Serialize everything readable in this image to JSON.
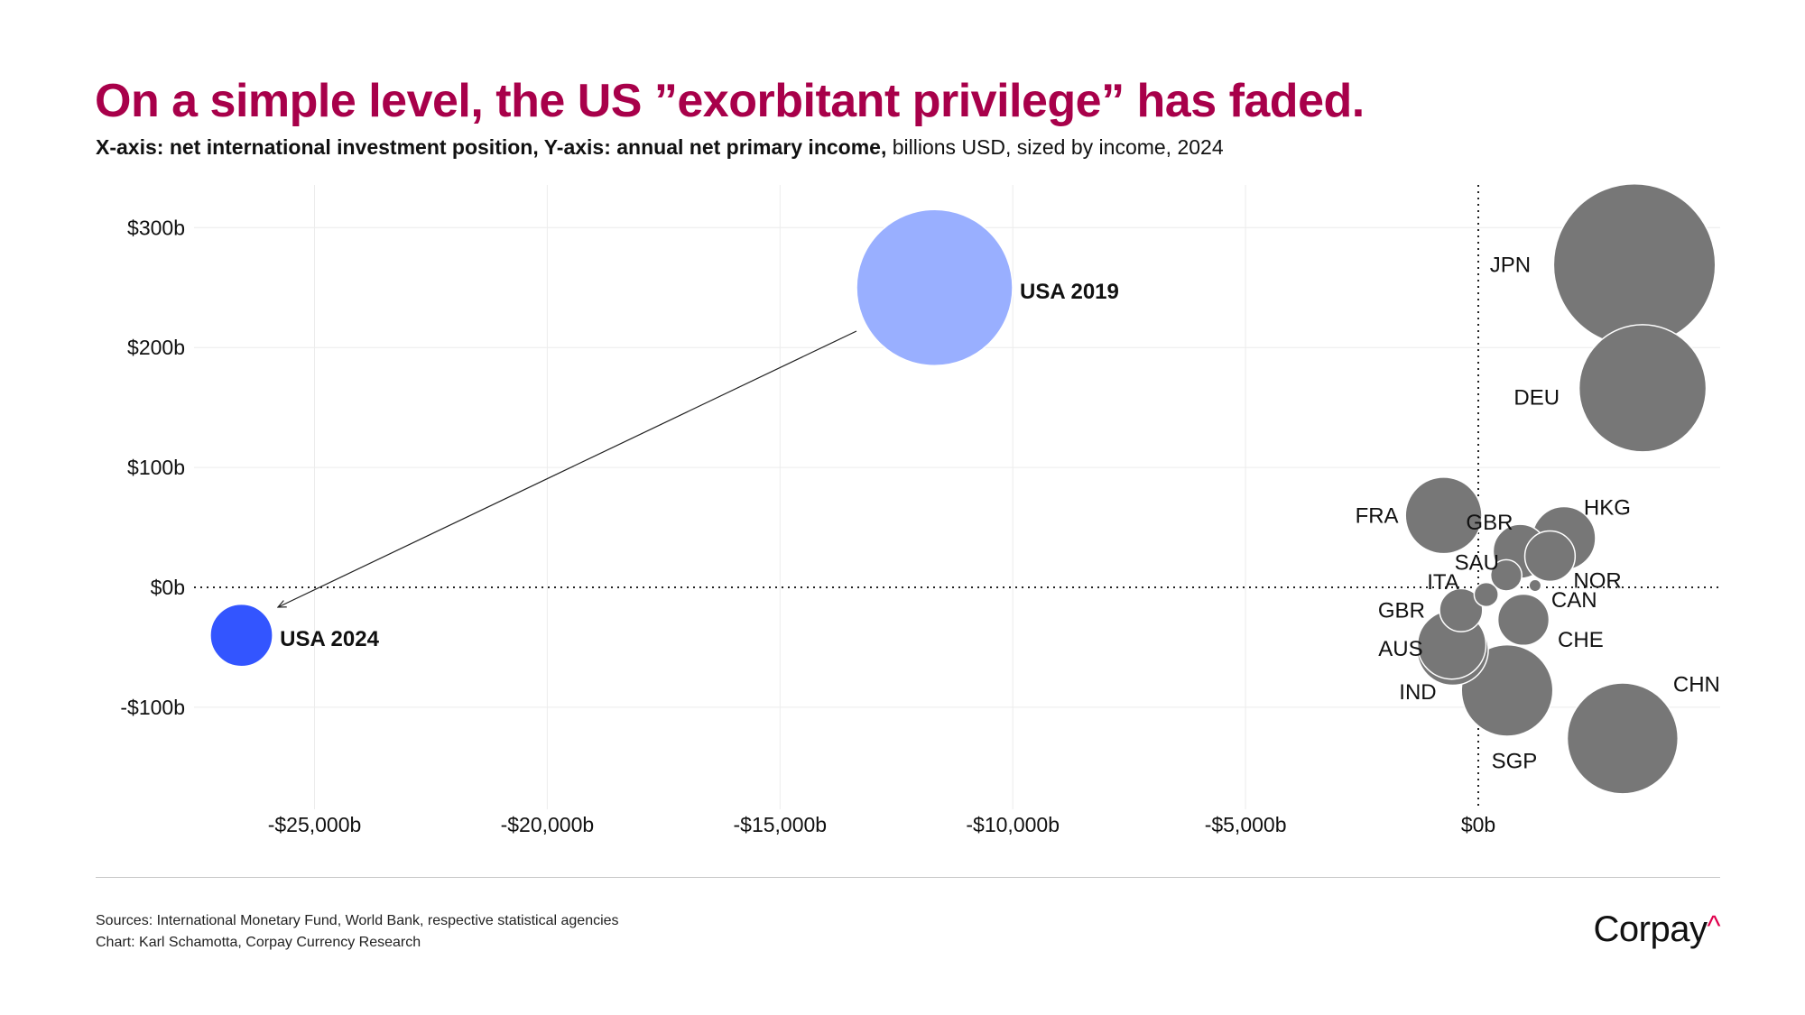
{
  "title": "On a simple level, the US ”exorbitant privilege” has faded.",
  "subtitle_bold": "X-axis: net international investment position, Y-axis: annual net primary income,",
  "subtitle_rest": " billions USD, sized by income, 2024",
  "footer": {
    "sources": "Sources: International Monetary Fund, World Bank, respective statistical agencies",
    "credit": "Chart: Karl Schamotta, Corpay Currency Research",
    "logo": "Corpay",
    "logo_mark": "^"
  },
  "chart_data": {
    "type": "scatter",
    "title": "On a simple level, the US ”exorbitant privilege” has faded.",
    "xlabel": "Net international investment position (billions USD)",
    "ylabel": "Annual net primary income (billions USD)",
    "xlim": [
      -28500,
      5200
    ],
    "ylim": [
      -175,
      340
    ],
    "grid": true,
    "x_ticks": [
      {
        "value": -25000,
        "label": "-$25,000b"
      },
      {
        "value": -20000,
        "label": "-$20,000b"
      },
      {
        "value": -15000,
        "label": "-$15,000b"
      },
      {
        "value": -10000,
        "label": "-$10,000b"
      },
      {
        "value": -5000,
        "label": "-$5,000b"
      },
      {
        "value": 0,
        "label": "$0b"
      }
    ],
    "y_ticks": [
      {
        "value": 300,
        "label": "$300b"
      },
      {
        "value": 200,
        "label": "$200b"
      },
      {
        "value": 100,
        "label": "$100b"
      },
      {
        "value": 0,
        "label": "$0b"
      },
      {
        "value": -100,
        "label": "-$100b"
      }
    ],
    "size_by": "income",
    "colors": {
      "country": "#777777",
      "usa_2019": "#99afff",
      "usa_2024": "#3355ff"
    },
    "points": [
      {
        "label": "USA 2019",
        "x": -11680,
        "y": 250,
        "group": "usa_2019"
      },
      {
        "label": "JPN",
        "x": 3355,
        "y": 269,
        "group": "country"
      },
      {
        "label": "DEU",
        "x": 3530,
        "y": 166,
        "group": "country"
      },
      {
        "label": "CHN",
        "x": 3100,
        "y": -126,
        "group": "country"
      },
      {
        "label": "SGP",
        "x": 620,
        "y": -86,
        "group": "country"
      },
      {
        "label": "FRA",
        "x": -745,
        "y": 60,
        "group": "country"
      },
      {
        "label": "IND",
        "x": -550,
        "y": -52,
        "group": "country"
      },
      {
        "label": "AUS",
        "x": -570,
        "y": -48,
        "group": "country"
      },
      {
        "label": "HKG",
        "x": 1840,
        "y": 41,
        "group": "country"
      },
      {
        "label": "GBR",
        "x": 900,
        "y": 30,
        "group": "country"
      },
      {
        "label": "NOR",
        "x": 1540,
        "y": 26,
        "group": "country"
      },
      {
        "label": "CHE",
        "x": 970,
        "y": -27,
        "group": "country"
      },
      {
        "label": "GBR",
        "x": -370,
        "y": -19,
        "group": "country"
      },
      {
        "label": "SAU",
        "x": 600,
        "y": 10,
        "group": "country"
      },
      {
        "label": "ITA",
        "x": 170,
        "y": -6,
        "group": "country"
      },
      {
        "label": "CAN",
        "x": 1220,
        "y": 1.5,
        "group": "country"
      },
      {
        "label": "USA 2024",
        "x": -26570,
        "y": -40,
        "group": "usa_2024"
      }
    ],
    "annotations": [
      {
        "type": "arrow",
        "from": "USA 2019",
        "to": "USA 2024"
      }
    ]
  }
}
